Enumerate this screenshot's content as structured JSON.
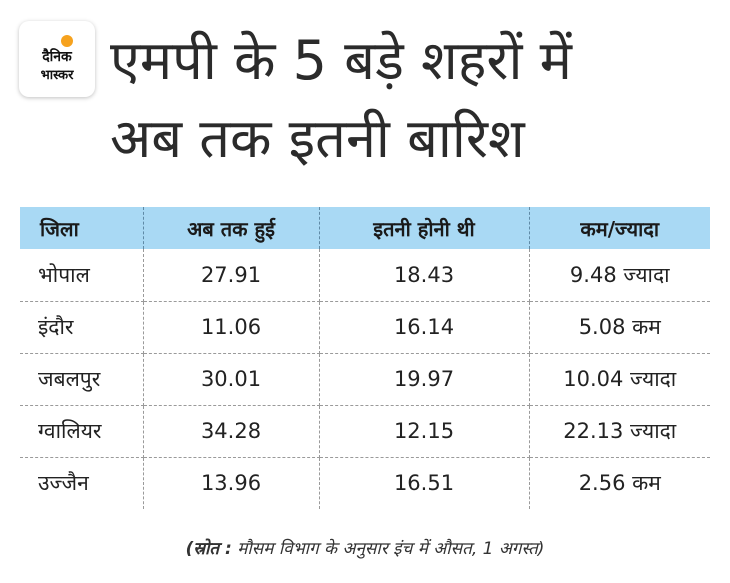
{
  "logo": {
    "line1": "दैनिक",
    "line2": "भास्कर",
    "accent_color": "#f6a21e"
  },
  "title": {
    "line1": "एमपी के 5 बड़े शहरों में",
    "line2": "अब तक इतनी बारिश"
  },
  "table": {
    "header_color": "#a9d9f4",
    "headers": [
      "जिला",
      "अब तक हुई",
      "इतनी होनी थी",
      "कम/ज्यादा"
    ],
    "rows": [
      [
        "भोपाल",
        "27.91",
        "18.43",
        "9.48 ज्यादा"
      ],
      [
        "इंदौर",
        "11.06",
        "16.14",
        "5.08 कम"
      ],
      [
        "जबलपुर",
        "30.01",
        "19.97",
        "10.04 ज्यादा"
      ],
      [
        "ग्वालियर",
        "34.28",
        "12.15",
        "22.13 ज्यादा"
      ],
      [
        "उज्जैन",
        "13.96",
        "16.51",
        "2.56 कम"
      ]
    ]
  },
  "source": {
    "label": "(स्रोत :",
    "text": " मौसम विभाग के अनुसार इंच में औसत, 1 अगस्त)"
  }
}
